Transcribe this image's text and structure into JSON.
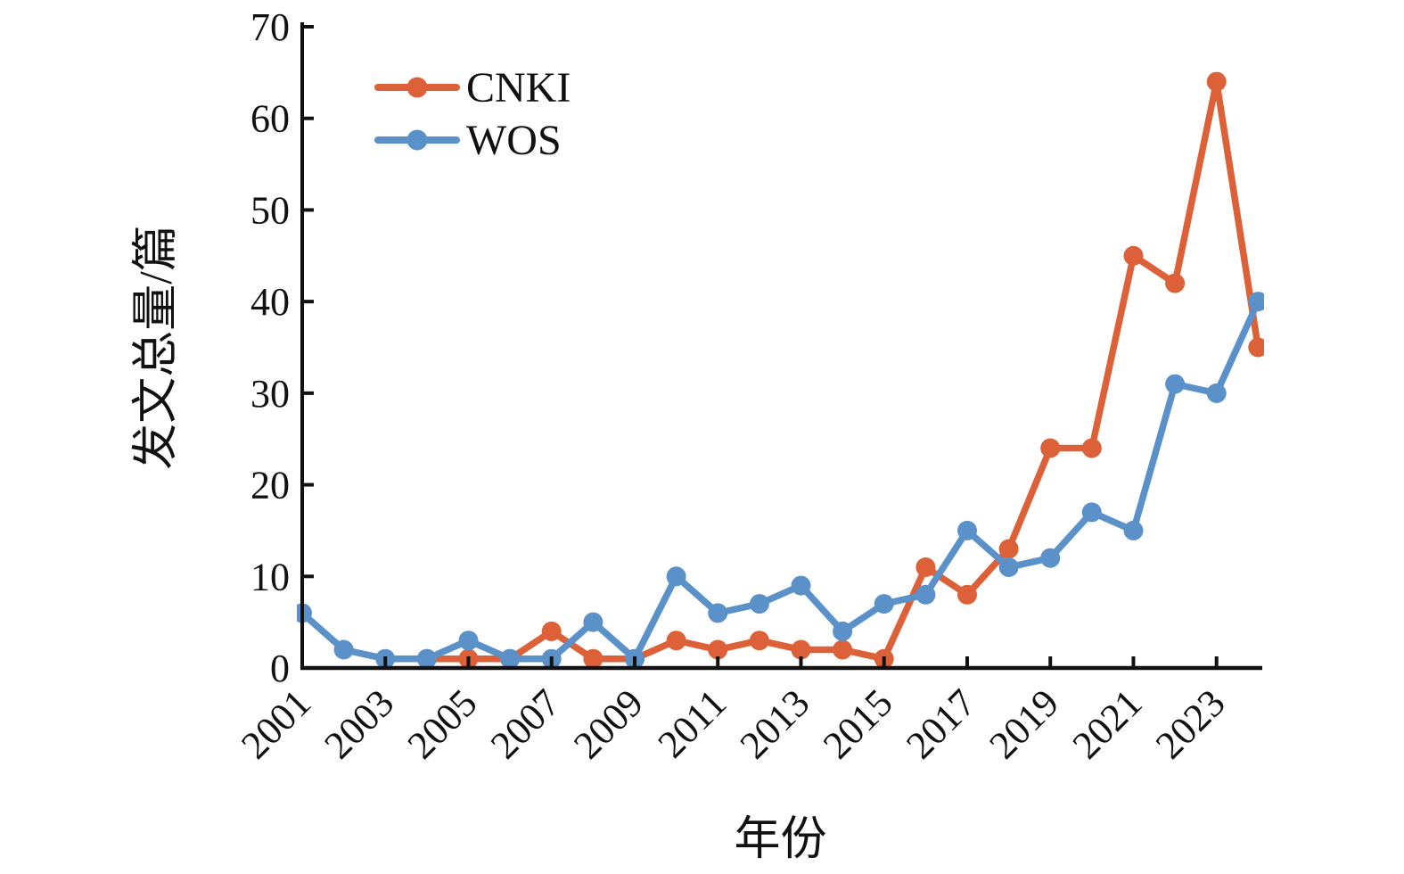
{
  "chart_data": {
    "type": "line",
    "title": "",
    "xlabel": "年份",
    "ylabel": "发文总量/篇",
    "x": [
      2001,
      2002,
      2003,
      2004,
      2005,
      2006,
      2007,
      2008,
      2009,
      2010,
      2011,
      2012,
      2013,
      2014,
      2015,
      2016,
      2017,
      2018,
      2019,
      2020,
      2021,
      2022,
      2023,
      2024
    ],
    "series": [
      {
        "name": "CNKI",
        "color": "#dd6138",
        "values": [
          null,
          null,
          null,
          1,
          1,
          1,
          4,
          1,
          1,
          3,
          2,
          3,
          2,
          2,
          1,
          11,
          8,
          13,
          24,
          24,
          45,
          42,
          64,
          35
        ]
      },
      {
        "name": "WOS",
        "color": "#5b91c9",
        "values": [
          6,
          2,
          1,
          1,
          3,
          1,
          1,
          5,
          1,
          10,
          6,
          7,
          9,
          4,
          7,
          8,
          15,
          11,
          12,
          17,
          15,
          31,
          30,
          40
        ]
      }
    ],
    "xlim": [
      2001,
      2024.1
    ],
    "ylim": [
      0,
      70
    ],
    "yticks": [
      0,
      10,
      20,
      30,
      40,
      50,
      60,
      70
    ],
    "xticks": [
      2001,
      2003,
      2005,
      2007,
      2009,
      2011,
      2013,
      2015,
      2017,
      2019,
      2021,
      2023
    ],
    "xtick_labels": [
      "2001",
      "2003",
      "2005",
      "2007",
      "2009",
      "2011",
      "2013",
      "2015",
      "2017",
      "2019",
      "2021",
      "2023"
    ],
    "ytick_labels": [
      "0",
      "10",
      "20",
      "30",
      "40",
      "50",
      "60",
      "70"
    ],
    "legend_position": "top-left",
    "legend": [
      "CNKI",
      "WOS"
    ],
    "grid": false,
    "axis_color": "#111111"
  }
}
